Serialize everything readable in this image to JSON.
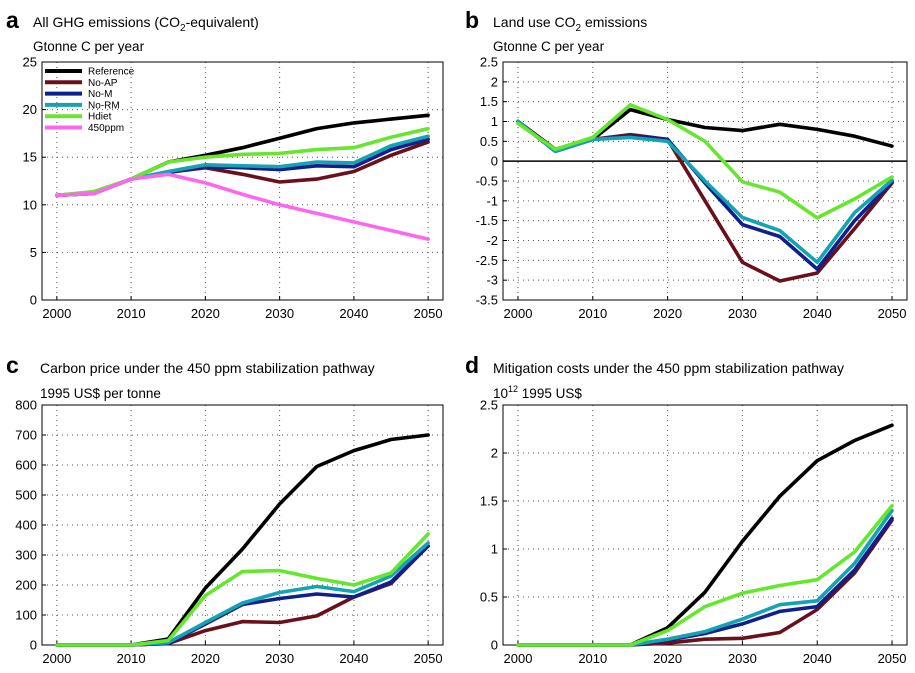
{
  "chart_data": [
    {
      "panel": "a",
      "type": "line",
      "title_pre": "All GHG emissions (CO",
      "title_sub": "2",
      "title_post": "-equivalent)",
      "unit_pre": "Gtonne C per year",
      "unit_sup": "",
      "unit_post": "",
      "x": [
        2000,
        2005,
        2010,
        2015,
        2020,
        2025,
        2030,
        2035,
        2040,
        2045,
        2050
      ],
      "xlim": [
        1998,
        2052
      ],
      "xticks": [
        2000,
        2010,
        2020,
        2030,
        2040,
        2050
      ],
      "ylim": [
        0,
        25
      ],
      "yticks": [
        0,
        5,
        10,
        15,
        20,
        25
      ],
      "zero_line": false,
      "grid": true,
      "legend": "top-left",
      "series": [
        {
          "name": "Reference",
          "color": "#000000",
          "values": [
            11.0,
            11.3,
            12.7,
            14.5,
            15.2,
            16.0,
            17.0,
            18.0,
            18.6,
            19.0,
            19.4
          ]
        },
        {
          "name": "No-AP",
          "color": "#6b0f1a",
          "values": [
            11.0,
            11.2,
            12.7,
            13.4,
            13.9,
            13.2,
            12.4,
            12.7,
            13.5,
            15.2,
            16.6
          ]
        },
        {
          "name": "No-M",
          "color": "#0f1f8c",
          "values": [
            11.0,
            11.2,
            12.7,
            13.4,
            14.0,
            13.9,
            13.7,
            14.1,
            14.0,
            15.8,
            16.9
          ]
        },
        {
          "name": "No-RM",
          "color": "#14a3b3",
          "values": [
            11.0,
            11.2,
            12.7,
            13.5,
            14.2,
            14.1,
            14.0,
            14.5,
            14.4,
            16.2,
            17.2
          ]
        },
        {
          "name": "Hdiet",
          "color": "#66e62e",
          "values": [
            11.0,
            11.4,
            12.7,
            14.5,
            15.0,
            15.3,
            15.4,
            15.8,
            16.0,
            17.1,
            18.0
          ]
        },
        {
          "name": "450ppm",
          "color": "#ff66ee",
          "values": [
            11.0,
            11.2,
            12.7,
            13.2,
            12.3,
            11.1,
            10.0,
            9.1,
            8.2,
            7.3,
            6.4
          ]
        }
      ]
    },
    {
      "panel": "b",
      "type": "line",
      "title_pre": "Land use CO",
      "title_sub": "2",
      "title_post": " emissions",
      "unit_pre": "Gtonne C per year",
      "unit_sup": "",
      "unit_post": "",
      "x": [
        2000,
        2005,
        2010,
        2015,
        2020,
        2025,
        2030,
        2035,
        2040,
        2045,
        2050
      ],
      "xlim": [
        1998,
        2052
      ],
      "xticks": [
        2000,
        2010,
        2020,
        2030,
        2040,
        2050
      ],
      "ylim": [
        -3.5,
        2.5
      ],
      "yticks": [
        -3.5,
        -3,
        -2.5,
        -2,
        -1.5,
        -1,
        -0.5,
        0,
        0.5,
        1,
        1.5,
        2,
        2.5
      ],
      "zero_line": true,
      "grid": true,
      "legend": "none",
      "series": [
        {
          "name": "Reference",
          "color": "#000000",
          "values": [
            1.0,
            0.3,
            0.55,
            1.3,
            1.05,
            0.85,
            0.77,
            0.93,
            0.8,
            0.63,
            0.38
          ]
        },
        {
          "name": "No-AP",
          "color": "#6b0f1a",
          "values": [
            1.0,
            0.25,
            0.55,
            0.67,
            0.55,
            -1.0,
            -2.55,
            -3.02,
            -2.82,
            -1.7,
            -0.55
          ]
        },
        {
          "name": "No-M",
          "color": "#0f1f8c",
          "values": [
            1.0,
            0.25,
            0.55,
            0.63,
            0.55,
            -0.55,
            -1.6,
            -1.9,
            -2.72,
            -1.5,
            -0.52
          ]
        },
        {
          "name": "No-RM",
          "color": "#14a3b3",
          "values": [
            1.0,
            0.25,
            0.55,
            0.6,
            0.5,
            -0.5,
            -1.42,
            -1.75,
            -2.55,
            -1.3,
            -0.48
          ]
        },
        {
          "name": "Hdiet",
          "color": "#66e62e",
          "values": [
            0.95,
            0.3,
            0.6,
            1.42,
            1.05,
            0.5,
            -0.52,
            -0.78,
            -1.43,
            -0.95,
            -0.4
          ]
        }
      ]
    },
    {
      "panel": "c",
      "type": "line",
      "title_pre": "Carbon price under the 450 ppm stabilization pathway",
      "title_sub": "",
      "title_post": "",
      "unit_pre": "1995 US$ per tonne",
      "unit_sup": "",
      "unit_post": "",
      "x": [
        2000,
        2005,
        2010,
        2015,
        2020,
        2025,
        2030,
        2035,
        2040,
        2045,
        2050
      ],
      "xlim": [
        1998,
        2052
      ],
      "xticks": [
        2000,
        2010,
        2020,
        2030,
        2040,
        2050
      ],
      "ylim": [
        0,
        800
      ],
      "yticks": [
        0,
        100,
        200,
        300,
        400,
        500,
        600,
        700,
        800
      ],
      "zero_line": false,
      "grid": true,
      "legend": "none",
      "series": [
        {
          "name": "Reference",
          "color": "#000000",
          "values": [
            0,
            0,
            0,
            20,
            190,
            320,
            470,
            595,
            648,
            685,
            700
          ]
        },
        {
          "name": "No-AP",
          "color": "#6b0f1a",
          "values": [
            0,
            0,
            0,
            5,
            48,
            78,
            75,
            97,
            160,
            205,
            330
          ]
        },
        {
          "name": "No-M",
          "color": "#0f1f8c",
          "values": [
            0,
            0,
            0,
            5,
            70,
            135,
            155,
            170,
            160,
            210,
            330
          ]
        },
        {
          "name": "No-RM",
          "color": "#14a3b3",
          "values": [
            0,
            0,
            0,
            8,
            75,
            140,
            175,
            195,
            178,
            230,
            340
          ]
        },
        {
          "name": "Hdiet",
          "color": "#66e62e",
          "values": [
            0,
            0,
            0,
            15,
            165,
            245,
            248,
            222,
            200,
            240,
            370
          ]
        }
      ]
    },
    {
      "panel": "d",
      "type": "line",
      "title_pre": "Mitigation costs under the 450 ppm stabilization pathway",
      "title_sub": "",
      "title_post": "",
      "unit_pre": "10",
      "unit_sup": "12",
      "unit_post": " 1995 US$",
      "x": [
        2000,
        2005,
        2010,
        2015,
        2020,
        2025,
        2030,
        2035,
        2040,
        2045,
        2050
      ],
      "xlim": [
        1998,
        2052
      ],
      "xticks": [
        2000,
        2010,
        2020,
        2030,
        2040,
        2050
      ],
      "ylim": [
        0,
        2.5
      ],
      "yticks": [
        0,
        0.5,
        1,
        1.5,
        2,
        2.5
      ],
      "zero_line": false,
      "grid": true,
      "legend": "none",
      "series": [
        {
          "name": "Reference",
          "color": "#000000",
          "values": [
            0,
            0,
            0,
            0,
            0.18,
            0.55,
            1.08,
            1.55,
            1.92,
            2.13,
            2.29
          ]
        },
        {
          "name": "No-AP",
          "color": "#6b0f1a",
          "values": [
            0,
            0,
            0,
            0,
            0.02,
            0.06,
            0.07,
            0.13,
            0.37,
            0.75,
            1.3
          ]
        },
        {
          "name": "No-M",
          "color": "#0f1f8c",
          "values": [
            0,
            0,
            0,
            0,
            0.05,
            0.12,
            0.22,
            0.35,
            0.4,
            0.78,
            1.32
          ]
        },
        {
          "name": "No-RM",
          "color": "#14a3b3",
          "values": [
            0,
            0,
            0,
            0,
            0.06,
            0.14,
            0.27,
            0.42,
            0.46,
            0.85,
            1.4
          ]
        },
        {
          "name": "Hdiet",
          "color": "#66e62e",
          "values": [
            0,
            0,
            0,
            0,
            0.15,
            0.4,
            0.54,
            0.62,
            0.68,
            0.97,
            1.45
          ]
        }
      ]
    }
  ],
  "panel_labels": [
    "a",
    "b",
    "c",
    "d"
  ]
}
